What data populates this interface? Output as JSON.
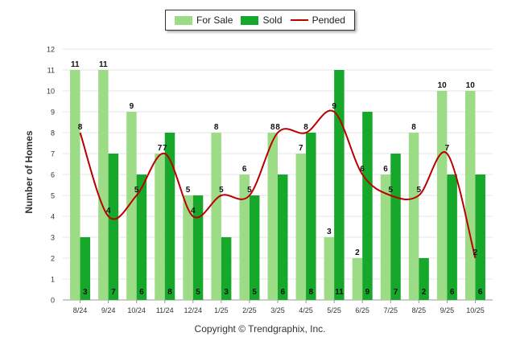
{
  "chart_data": {
    "type": "bar",
    "ylabel": "Number of Homes",
    "ylim": [
      0,
      12
    ],
    "yticks": [
      0,
      1,
      2,
      3,
      4,
      5,
      6,
      7,
      8,
      9,
      10,
      11,
      12
    ],
    "categories": [
      "8/24",
      "9/24",
      "10/24",
      "11/24",
      "12/24",
      "1/25",
      "2/25",
      "3/25",
      "4/25",
      "5/25",
      "6/25",
      "7/25",
      "8/25",
      "9/25",
      "10/25"
    ],
    "series": [
      {
        "name": "For Sale",
        "kind": "bar",
        "color": "#9ddc87",
        "values": [
          11,
          11,
          9,
          7,
          5,
          8,
          6,
          8,
          7,
          3,
          2,
          6,
          8,
          10,
          10
        ]
      },
      {
        "name": "Sold",
        "kind": "bar",
        "color": "#16a82a",
        "values": [
          3,
          7,
          6,
          8,
          5,
          3,
          5,
          6,
          8,
          11,
          9,
          7,
          2,
          6,
          6
        ]
      },
      {
        "name": "Pended",
        "kind": "line",
        "color": "#bb0000",
        "values": [
          8,
          4,
          5,
          7,
          4,
          5,
          5,
          8,
          8,
          9,
          6,
          5,
          5,
          7,
          2
        ]
      }
    ],
    "legend": "top-center",
    "grid": true
  },
  "footer": {
    "copyright": "Copyright © Trendgraphix, Inc."
  }
}
